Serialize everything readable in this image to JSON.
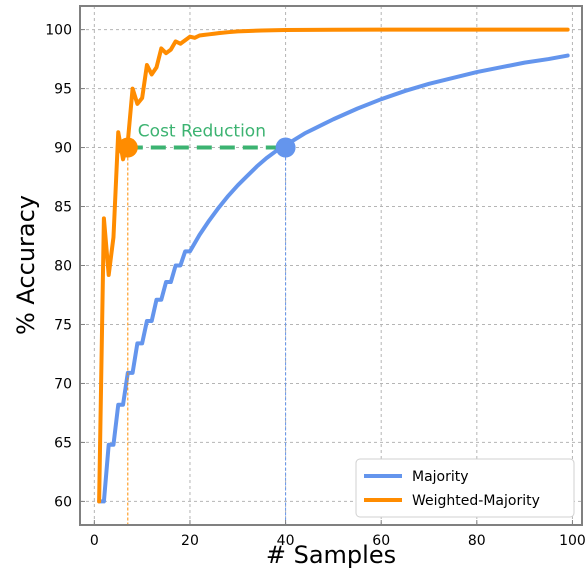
{
  "chart_data": {
    "type": "line",
    "title": "",
    "xlabel": "# Samples",
    "ylabel": "% Accuracy",
    "xlim": [
      -3,
      102
    ],
    "ylim": [
      58,
      102
    ],
    "xticks": [
      0,
      20,
      40,
      60,
      80,
      100
    ],
    "yticks": [
      60,
      65,
      70,
      75,
      80,
      85,
      90,
      95,
      100
    ],
    "xtick_labels": [
      "0",
      "20",
      "40",
      "60",
      "80",
      "100"
    ],
    "ytick_labels": [
      "60",
      "65",
      "70",
      "75",
      "80",
      "85",
      "90",
      "95",
      "100"
    ],
    "grid": true,
    "legend_position": "lower-right",
    "series": [
      {
        "name": "Majority",
        "color": "#6495ed",
        "x": [
          1,
          2,
          3,
          4,
          5,
          6,
          7,
          8,
          9,
          10,
          11,
          12,
          13,
          14,
          15,
          16,
          17,
          18,
          19,
          20,
          22,
          24,
          26,
          28,
          30,
          32,
          34,
          36,
          38,
          40,
          42,
          44,
          46,
          48,
          50,
          55,
          60,
          65,
          70,
          75,
          80,
          85,
          90,
          95,
          99
        ],
        "y": [
          60,
          60,
          64.8,
          64.8,
          68.2,
          68.2,
          70.9,
          70.9,
          73.4,
          73.4,
          75.3,
          75.3,
          77.1,
          77.1,
          78.6,
          78.6,
          80.0,
          80.0,
          81.2,
          81.2,
          82.6,
          83.8,
          84.9,
          85.9,
          86.8,
          87.6,
          88.4,
          89.1,
          89.7,
          90.2,
          90.7,
          91.2,
          91.6,
          92.0,
          92.4,
          93.3,
          94.1,
          94.8,
          95.4,
          95.9,
          96.4,
          96.8,
          97.2,
          97.5,
          97.8
        ]
      },
      {
        "name": "Weighted-Majority",
        "color": "#ff8c00",
        "x": [
          1,
          2,
          3,
          4,
          5,
          6,
          7,
          8,
          9,
          10,
          11,
          12,
          13,
          14,
          15,
          16,
          17,
          18,
          19,
          20,
          21,
          22,
          23,
          24,
          25,
          26,
          28,
          30,
          35,
          40,
          45,
          50,
          60,
          70,
          80,
          90,
          99
        ],
        "y": [
          60,
          84.0,
          79.2,
          82.4,
          91.3,
          89.0,
          90.5,
          95.0,
          93.7,
          94.2,
          97.0,
          96.2,
          96.8,
          98.4,
          98.0,
          98.3,
          99.0,
          98.8,
          99.1,
          99.4,
          99.3,
          99.5,
          99.55,
          99.6,
          99.65,
          99.7,
          99.78,
          99.85,
          99.92,
          99.96,
          99.98,
          99.99,
          100,
          100,
          100,
          100,
          100
        ]
      }
    ],
    "annotation": {
      "text": "Cost Reduction",
      "color": "#3cb371",
      "from": {
        "x": 7,
        "y": 90
      },
      "to": {
        "x": 40,
        "y": 90
      }
    }
  }
}
